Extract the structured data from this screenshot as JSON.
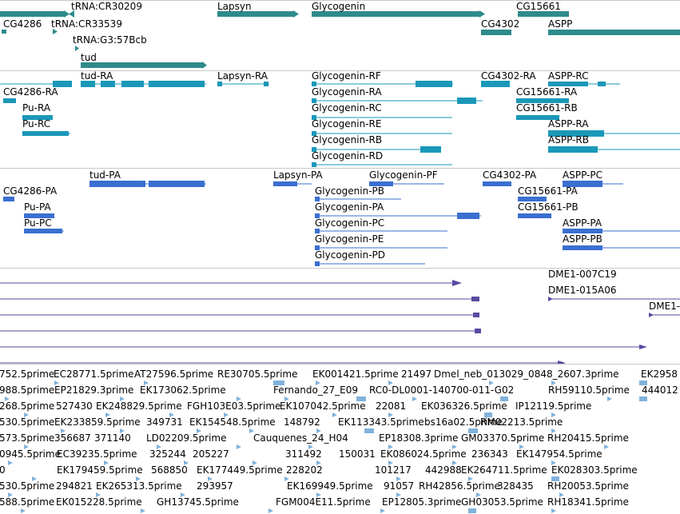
{
  "colors": {
    "gene": "#2e8b8b",
    "transcript_a": "#1a98b8",
    "transcript_b": "#3a6fd0",
    "cdna": "#5a4aa0",
    "est": "#7fb2dc",
    "separator": "#c8c8c8"
  },
  "genes_track": {
    "labels": [
      "tRNA:CR30209",
      "Lapsyn",
      "Glycogenin",
      "CG15661",
      "CG4286",
      "tRNA:CR33539",
      "CG4302",
      "ASPP",
      "tRNA:G3:57Bcb",
      "tud"
    ]
  },
  "transcripts_track_1": {
    "labels": [
      "tud-RA",
      "Lapsyn-RA",
      "Glycogenin-RF",
      "CG4302-RA",
      "ASPP-RC",
      "CG4286-RA",
      "Glycogenin-RA",
      "CG15661-RA",
      "Pu-RA",
      "Glycogenin-RC",
      "CG15661-RB",
      "Pu-RC",
      "Glycogenin-RE",
      "ASPP-RA",
      "Glycogenin-RB",
      "ASPP-RB",
      "Glycogenin-RD"
    ]
  },
  "transcripts_track_2": {
    "labels": [
      "tud-PA",
      "Lapsyn-PA",
      "Glycogenin-PF",
      "CG4302-PA",
      "ASPP-PC",
      "CG4286-PA",
      "Glycogenin-PB",
      "CG15661-PA",
      "Pu-PA",
      "Glycogenin-PA",
      "CG15661-PB",
      "Pu-PC",
      "Glycogenin-PC",
      "ASPP-PA",
      "Glycogenin-PE",
      "ASPP-PB",
      "Glycogenin-PD"
    ]
  },
  "cdna_track": {
    "labels": [
      "DME1-007C19",
      "DME1-015A06",
      "DME1-"
    ]
  },
  "est_track": {
    "labels": [
      "752.5prime",
      "EC28771.5prime",
      "AT27596.5prime",
      "RE30705.5prime",
      "EK001421.5prime",
      "21497",
      "Dmel_neb_013029_0848_2607.3prime",
      "EK2958",
      "988.5prime",
      "EP21829.3prime",
      "EK173062.5prime",
      "Fernando_27_E09",
      "RC0-DL0001-140700-011-G02",
      "RH59110.5prime",
      "444012",
      "268.5prime",
      "527430",
      "EK248829.5prime",
      "FGH103E03.5prime",
      "EK107042.5prime",
      "22081",
      "EK036326.5prime",
      "IP12119.5prime",
      "530.5prime",
      "EK233859.5prime",
      "349731",
      "EK154548.5prime",
      "148792",
      "EK113343.5prime",
      "bs16a02.5prime",
      "RM02213.5prime",
      "573.5prime",
      "356687",
      "371140",
      "LD02209.5prime",
      "Cauquenes_24_H04",
      "EP18308.3prime",
      "GM03370.5prime",
      "RH20415.5prime",
      "0945.5prime",
      "EC39235.5prime",
      "325244",
      "205227",
      "311492",
      "150031",
      "EK086024.5prime",
      "236343",
      "EK147954.5prime",
      "0",
      "EK179459.5prime",
      "568850",
      "EK177449.5prime",
      "228202",
      "101217",
      "442988",
      "EK264711.5prime",
      "EK028303.5prime",
      "530.5prime",
      "294821",
      "EK265313.5prime",
      "293957",
      "EK169949.5prime",
      "91057",
      "RH42856.5prime",
      "328435",
      "RH20053.5prime",
      "588.5prime",
      "EK015228.5prime",
      "GH13745.5prime",
      "FGM004E11.5prime",
      "EP12805.3prime",
      "GH03053.5prime",
      "RH18341.5prime"
    ]
  }
}
